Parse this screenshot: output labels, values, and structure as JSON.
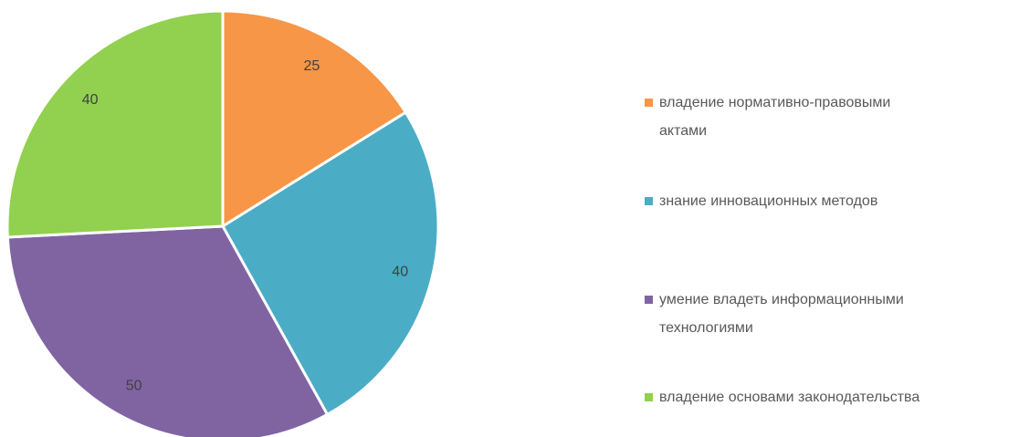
{
  "chart_data": {
    "type": "pie",
    "categories": [
      "владение нормативно-правовыми актами",
      "знание инновационных методов",
      "умение владеть информационными технологиями",
      "владение основами законодательства"
    ],
    "values": [
      25,
      40,
      50,
      40
    ],
    "colors": [
      "#f79646",
      "#4bacc6",
      "#8064a2",
      "#92d050"
    ],
    "legend": "right"
  }
}
